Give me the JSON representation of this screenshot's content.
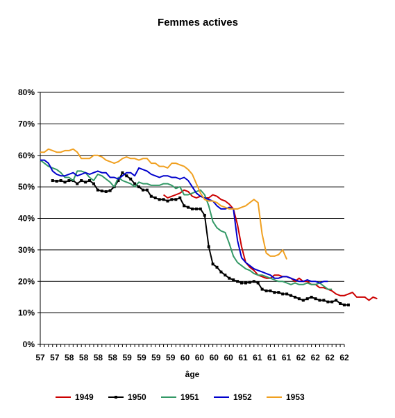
{
  "chart_data": {
    "type": "line",
    "title": "Femmes actives",
    "xlabel": "âge",
    "ylabel": "",
    "ylim": [
      0,
      0.8
    ],
    "y_ticks": [
      "0%",
      "10%",
      "20%",
      "30%",
      "40%",
      "50%",
      "60%",
      "70%",
      "80%"
    ],
    "x_tick_labels": [
      "57",
      "57",
      "58",
      "58",
      "58",
      "58",
      "59",
      "59",
      "59",
      "59",
      "60",
      "60",
      "60",
      "60",
      "61",
      "61",
      "61",
      "61",
      "62",
      "62",
      "62",
      "62"
    ],
    "grid": "horizontal",
    "legend_position": "bottom",
    "series": [
      {
        "name": "1949",
        "color": "#cc0000",
        "marker": "none",
        "start": 30,
        "values": [
          0.475,
          0.465,
          0.47,
          0.475,
          0.48,
          0.49,
          0.485,
          0.47,
          0.465,
          0.47,
          0.465,
          0.465,
          0.475,
          0.47,
          0.46,
          0.455,
          0.445,
          0.43,
          0.38,
          0.31,
          0.26,
          0.245,
          0.235,
          0.22,
          0.215,
          0.21,
          0.21,
          0.22,
          0.22,
          0.215,
          0.215,
          0.21,
          0.2,
          0.21,
          0.2,
          0.2,
          0.19,
          0.19,
          0.18,
          0.18,
          0.175,
          0.17,
          0.16,
          0.155,
          0.155,
          0.16,
          0.165,
          0.15,
          0.15,
          0.15,
          0.14,
          0.15,
          0.145
        ]
      },
      {
        "name": "1950",
        "color": "#000000",
        "marker": "square",
        "start": 3,
        "values": [
          0.52,
          0.518,
          0.52,
          0.515,
          0.52,
          0.52,
          0.51,
          0.52,
          0.515,
          0.52,
          0.51,
          0.49,
          0.487,
          0.485,
          0.488,
          0.5,
          0.52,
          0.545,
          0.535,
          0.525,
          0.51,
          0.5,
          0.49,
          0.49,
          0.47,
          0.465,
          0.46,
          0.46,
          0.455,
          0.46,
          0.46,
          0.465,
          0.44,
          0.435,
          0.43,
          0.43,
          0.43,
          0.41,
          0.31,
          0.255,
          0.245,
          0.23,
          0.22,
          0.21,
          0.205,
          0.2,
          0.195,
          0.195,
          0.197,
          0.2,
          0.195,
          0.175,
          0.17,
          0.17,
          0.165,
          0.165,
          0.16,
          0.16,
          0.155,
          0.15,
          0.145,
          0.14,
          0.145,
          0.15,
          0.145,
          0.14,
          0.14,
          0.135,
          0.135,
          0.14,
          0.13,
          0.125,
          0.125
        ]
      },
      {
        "name": "1951",
        "color": "#339966",
        "marker": "none",
        "start": 0,
        "values": [
          0.585,
          0.575,
          0.565,
          0.56,
          0.555,
          0.545,
          0.53,
          0.53,
          0.52,
          0.55,
          0.55,
          0.545,
          0.53,
          0.52,
          0.54,
          0.535,
          0.525,
          0.515,
          0.5,
          0.53,
          0.52,
          0.515,
          0.51,
          0.5,
          0.515,
          0.51,
          0.51,
          0.505,
          0.505,
          0.505,
          0.51,
          0.51,
          0.505,
          0.495,
          0.5,
          0.475,
          0.475,
          0.48,
          0.485,
          0.49,
          0.475,
          0.44,
          0.39,
          0.37,
          0.36,
          0.355,
          0.32,
          0.28,
          0.26,
          0.25,
          0.24,
          0.235,
          0.225,
          0.22,
          0.22,
          0.215,
          0.21,
          0.205,
          0.2,
          0.2,
          0.195,
          0.19,
          0.195,
          0.19,
          0.19,
          0.195,
          0.19,
          0.19,
          0.195,
          0.185,
          0.175,
          0.175
        ]
      },
      {
        "name": "1952",
        "color": "#0000cc",
        "marker": "none",
        "start": 0,
        "values": [
          0.585,
          0.585,
          0.575,
          0.55,
          0.54,
          0.535,
          0.535,
          0.54,
          0.545,
          0.535,
          0.54,
          0.545,
          0.54,
          0.545,
          0.55,
          0.545,
          0.545,
          0.53,
          0.53,
          0.525,
          0.535,
          0.545,
          0.545,
          0.535,
          0.56,
          0.555,
          0.55,
          0.54,
          0.535,
          0.53,
          0.535,
          0.535,
          0.53,
          0.53,
          0.525,
          0.53,
          0.52,
          0.5,
          0.48,
          0.47,
          0.465,
          0.46,
          0.455,
          0.44,
          0.43,
          0.43,
          0.435,
          0.43,
          0.33,
          0.275,
          0.26,
          0.25,
          0.24,
          0.235,
          0.23,
          0.225,
          0.22,
          0.21,
          0.21,
          0.215,
          0.215,
          0.21,
          0.205,
          0.2,
          0.2,
          0.205,
          0.2,
          0.2,
          0.195,
          0.2,
          0.2
        ]
      },
      {
        "name": "1953",
        "color": "#f0a020",
        "marker": "none",
        "start": 0,
        "values": [
          0.61,
          0.61,
          0.62,
          0.615,
          0.61,
          0.61,
          0.615,
          0.615,
          0.62,
          0.61,
          0.59,
          0.59,
          0.59,
          0.6,
          0.6,
          0.595,
          0.585,
          0.58,
          0.575,
          0.58,
          0.59,
          0.595,
          0.59,
          0.59,
          0.585,
          0.59,
          0.59,
          0.575,
          0.575,
          0.565,
          0.565,
          0.56,
          0.575,
          0.575,
          0.57,
          0.565,
          0.555,
          0.54,
          0.51,
          0.48,
          0.46,
          0.455,
          0.455,
          0.45,
          0.44,
          0.435,
          0.43,
          0.43,
          0.43,
          0.435,
          0.44,
          0.45,
          0.46,
          0.45,
          0.35,
          0.29,
          0.28,
          0.28,
          0.285,
          0.3,
          0.27
        ]
      }
    ]
  }
}
